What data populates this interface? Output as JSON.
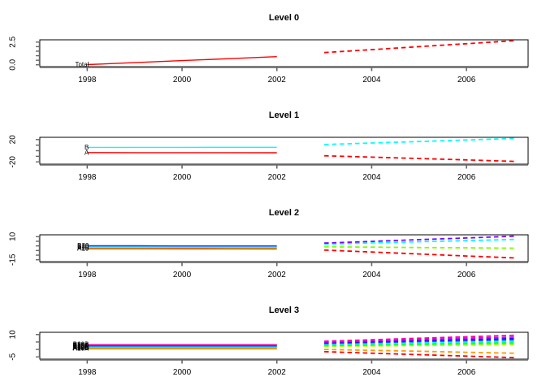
{
  "figure": {
    "background": "#ffffff",
    "box_color": "#000000",
    "axis_color": "#666666",
    "text_color": "#000000"
  },
  "x_axis": {
    "xlim": [
      1997.0,
      2007.3
    ],
    "ticks": [
      1998,
      2000,
      2002,
      2004,
      2006
    ],
    "tick_labels": [
      "1998",
      "2000",
      "2002",
      "2004",
      "2006"
    ]
  },
  "forecast_style": {
    "line_style": "dashed"
  },
  "chart_data": [
    {
      "type": "line",
      "title": "Level 0",
      "ylim": [
        -0.2,
        2.75
      ],
      "yticks": [
        0,
        0.5,
        1,
        1.5,
        2,
        2.5
      ],
      "ytick_labels": [
        {
          "value": 2.5,
          "label": "2.5"
        },
        {
          "value": 0,
          "label": "0.0"
        }
      ],
      "series": [
        {
          "name": "Total",
          "color": "#FF0000",
          "history_x": [
            1998,
            1999,
            2000,
            2001,
            2002
          ],
          "history_y": [
            0.02,
            0.24,
            0.46,
            0.68,
            0.9
          ],
          "forecast_x": [
            2003,
            2004,
            2005,
            2006,
            2007
          ],
          "forecast_y": [
            1.35,
            1.67,
            2.0,
            2.32,
            2.65
          ]
        }
      ]
    },
    {
      "type": "line",
      "title": "Level 1",
      "ylim": [
        -24,
        24
      ],
      "yticks": [
        -20,
        -10,
        0,
        10,
        20
      ],
      "ytick_labels": [
        {
          "value": 20,
          "label": "20"
        },
        {
          "value": -20,
          "label": "-20"
        }
      ],
      "series": [
        {
          "name": "A",
          "color": "#FF0000",
          "history_x": [
            1998,
            1999,
            2000,
            2001,
            2002
          ],
          "history_y": [
            -3.4,
            -3.45,
            -3.5,
            -3.55,
            -3.6
          ],
          "forecast_x": [
            2003,
            2004,
            2005,
            2006,
            2007
          ],
          "forecast_y": [
            -9,
            -11.5,
            -14,
            -16.5,
            -19
          ]
        },
        {
          "name": "B",
          "color": "#00FFFF",
          "history_x": [
            1998,
            1999,
            2000,
            2001,
            2002
          ],
          "history_y": [
            5.9,
            5.95,
            6.0,
            6.05,
            6.1
          ],
          "forecast_x": [
            2003,
            2004,
            2005,
            2006,
            2007
          ],
          "forecast_y": [
            11,
            13.75,
            16.5,
            19.25,
            22
          ]
        }
      ]
    },
    {
      "type": "line",
      "title": "Level 2",
      "ylim": [
        -17,
        12
      ],
      "yticks": [
        -15,
        -10,
        -5,
        0,
        5,
        10
      ],
      "ytick_labels": [
        {
          "value": 10,
          "label": "10"
        },
        {
          "value": -15,
          "label": "-15"
        }
      ],
      "series": [
        {
          "name": "A10",
          "color": "#FF0000",
          "history_x": [
            1998,
            1999,
            2000,
            2001,
            2002
          ],
          "history_y": [
            -3.0,
            -3.0,
            -3.1,
            -3.1,
            -3.2
          ],
          "forecast_x": [
            2003,
            2004,
            2005,
            2006,
            2007
          ],
          "forecast_y": [
            -4.5,
            -6.6,
            -8.7,
            -10.9,
            -13
          ]
        },
        {
          "name": "A20",
          "color": "#80FF00",
          "history_x": [
            1998,
            1999,
            2000,
            2001,
            2002
          ],
          "history_y": [
            -2.0,
            -2.0,
            -2.0,
            -2.1,
            -2.1
          ],
          "forecast_x": [
            2003,
            2004,
            2005,
            2006,
            2007
          ],
          "forecast_y": [
            -1.0,
            -1.4,
            -1.8,
            -2.1,
            -2.5
          ]
        },
        {
          "name": "B10",
          "color": "#00FFFF",
          "history_x": [
            1998,
            1999,
            2000,
            2001,
            2002
          ],
          "history_y": [
            -0.9,
            -0.9,
            -1.0,
            -1.0,
            -1.0
          ],
          "forecast_x": [
            2003,
            2004,
            2005,
            2006,
            2007
          ],
          "forecast_y": [
            2.0,
            3.2,
            4.5,
            5.7,
            7.0
          ]
        },
        {
          "name": "B20",
          "color": "#8000FF",
          "history_x": [
            1998,
            1999,
            2000,
            2001,
            2002
          ],
          "history_y": [
            0.1,
            0.1,
            0.0,
            0.0,
            0.0
          ],
          "forecast_x": [
            2003,
            2004,
            2005,
            2006,
            2007
          ],
          "forecast_y": [
            3.0,
            4.9,
            6.8,
            8.6,
            10.5
          ]
        }
      ]
    },
    {
      "type": "line",
      "title": "Level 3",
      "ylim": [
        -6.5,
        11.5
      ],
      "yticks": [
        -5,
        0,
        5,
        10
      ],
      "ytick_labels": [
        {
          "value": 10,
          "label": "10"
        },
        {
          "value": -5,
          "label": "-5"
        }
      ],
      "series": [
        {
          "name": "A10A",
          "color": "#FF0000",
          "history_x": [
            1998,
            1999,
            2000,
            2001,
            2002
          ],
          "history_y": [
            0.5,
            0.5,
            0.5,
            0.5,
            0.5
          ],
          "forecast_x": [
            2003,
            2004,
            2005,
            2006,
            2007
          ],
          "forecast_y": [
            -1.5,
            -2.5,
            -3.5,
            -4.5,
            -5.5
          ]
        },
        {
          "name": "A10B",
          "color": "#FF9900",
          "history_x": [
            1998,
            1999,
            2000,
            2001,
            2002
          ],
          "history_y": [
            0.8,
            0.8,
            0.8,
            0.8,
            0.8
          ],
          "forecast_x": [
            2003,
            2004,
            2005,
            2006,
            2007
          ],
          "forecast_y": [
            0.0,
            -0.6,
            -1.2,
            -1.9,
            -2.5
          ]
        },
        {
          "name": "A10C",
          "color": "#CCFF00",
          "history_x": [
            1998,
            1999,
            2000,
            2001,
            2002
          ],
          "history_y": [
            1.1,
            1.1,
            1.1,
            1.1,
            1.1
          ],
          "forecast_x": [
            2003,
            2004,
            2005,
            2006,
            2007
          ],
          "forecast_y": [
            2.0,
            2.3,
            2.6,
            2.9,
            3.2
          ]
        },
        {
          "name": "A20A",
          "color": "#33FF00",
          "history_x": [
            1998,
            1999,
            2000,
            2001,
            2002
          ],
          "history_y": [
            1.4,
            1.4,
            1.4,
            1.4,
            1.4
          ],
          "forecast_x": [
            2003,
            2004,
            2005,
            2006,
            2007
          ],
          "forecast_y": [
            2.5,
            2.9,
            3.3,
            3.7,
            4.1
          ]
        },
        {
          "name": "A20B",
          "color": "#00FF66",
          "history_x": [
            1998,
            1999,
            2000,
            2001,
            2002
          ],
          "history_y": [
            1.7,
            1.7,
            1.7,
            1.7,
            1.7
          ],
          "forecast_x": [
            2003,
            2004,
            2005,
            2006,
            2007
          ],
          "forecast_y": [
            3.0,
            3.5,
            4.0,
            4.4,
            4.9
          ]
        },
        {
          "name": "B10A",
          "color": "#00FFFF",
          "history_x": [
            1998,
            1999,
            2000,
            2001,
            2002
          ],
          "history_y": [
            2.0,
            2.0,
            2.0,
            2.0,
            2.0
          ],
          "forecast_x": [
            2003,
            2004,
            2005,
            2006,
            2007
          ],
          "forecast_y": [
            3.5,
            4.1,
            4.6,
            5.2,
            5.7
          ]
        },
        {
          "name": "B10B",
          "color": "#0066FF",
          "history_x": [
            1998,
            1999,
            2000,
            2001,
            2002
          ],
          "history_y": [
            2.3,
            2.3,
            2.3,
            2.3,
            2.3
          ],
          "forecast_x": [
            2003,
            2004,
            2005,
            2006,
            2007
          ],
          "forecast_y": [
            4.0,
            4.6,
            5.3,
            5.9,
            6.5
          ]
        },
        {
          "name": "B10C",
          "color": "#3300FF",
          "history_x": [
            1998,
            1999,
            2000,
            2001,
            2002
          ],
          "history_y": [
            2.6,
            2.6,
            2.6,
            2.6,
            2.6
          ],
          "forecast_x": [
            2003,
            2004,
            2005,
            2006,
            2007
          ],
          "forecast_y": [
            4.5,
            5.2,
            5.9,
            6.6,
            7.3
          ]
        },
        {
          "name": "B20A",
          "color": "#CC00FF",
          "history_x": [
            1998,
            1999,
            2000,
            2001,
            2002
          ],
          "history_y": [
            2.9,
            2.9,
            2.9,
            2.9,
            2.9
          ],
          "forecast_x": [
            2003,
            2004,
            2005,
            2006,
            2007
          ],
          "forecast_y": [
            5.0,
            5.8,
            6.7,
            7.5,
            8.3
          ]
        },
        {
          "name": "B20B",
          "color": "#FF0099",
          "history_x": [
            1998,
            1999,
            2000,
            2001,
            2002
          ],
          "history_y": [
            3.2,
            3.2,
            3.2,
            3.2,
            3.2
          ],
          "forecast_x": [
            2003,
            2004,
            2005,
            2006,
            2007
          ],
          "forecast_y": [
            5.5,
            6.5,
            7.5,
            8.5,
            9.5
          ]
        }
      ]
    }
  ]
}
